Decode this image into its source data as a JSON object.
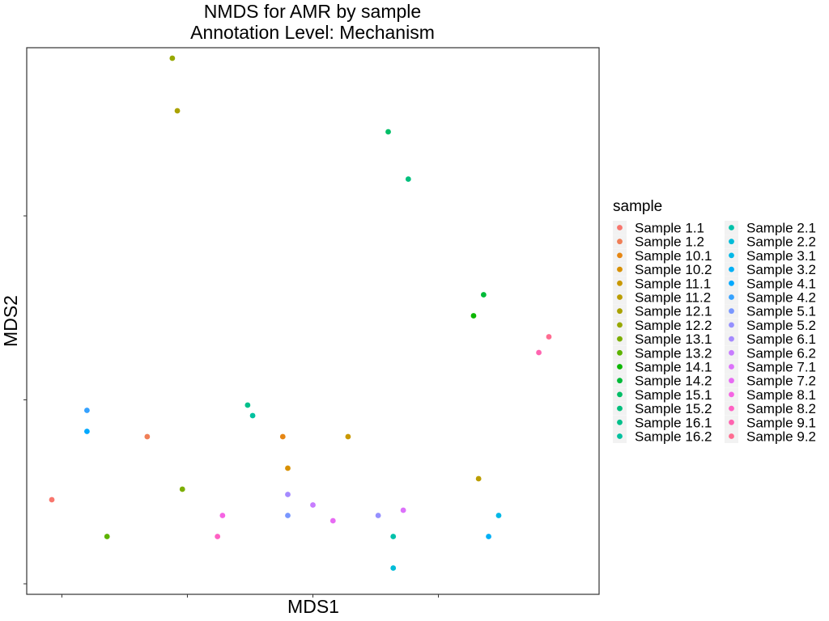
{
  "chart_data": {
    "type": "scatter",
    "title": "NMDS for AMR by sample",
    "subtitle": "Annotation Level: Mechanism",
    "xlabel": "MDS1",
    "ylabel": "MDS2",
    "xlim": [
      -0.52,
      0.62
    ],
    "ylim": [
      -0.52,
      0.52
    ],
    "grid": false,
    "axis_tick_labels": false,
    "legend": {
      "title": "sample",
      "position": "right",
      "columns": 2
    },
    "series": [
      {
        "name": "Sample 1.1",
        "color": "#F8766D",
        "x": -0.47,
        "y": -0.34
      },
      {
        "name": "Sample 1.2",
        "color": "#F07F57",
        "x": -0.28,
        "y": -0.22
      },
      {
        "name": "Sample 10.1",
        "color": "#E68613",
        "x": -0.01,
        "y": -0.22
      },
      {
        "name": "Sample 10.2",
        "color": "#D89000",
        "x": 0.0,
        "y": -0.28
      },
      {
        "name": "Sample 11.1",
        "color": "#C99800",
        "x": 0.12,
        "y": -0.22
      },
      {
        "name": "Sample 11.2",
        "color": "#BB9D00",
        "x": 0.38,
        "y": -0.3
      },
      {
        "name": "Sample 12.1",
        "color": "#AAA200",
        "x": -0.22,
        "y": 0.4
      },
      {
        "name": "Sample 12.2",
        "color": "#97A800",
        "x": -0.23,
        "y": 0.5
      },
      {
        "name": "Sample 13.1",
        "color": "#7CAE00",
        "x": -0.21,
        "y": -0.32
      },
      {
        "name": "Sample 13.2",
        "color": "#5DB300",
        "x": -0.36,
        "y": -0.41
      },
      {
        "name": "Sample 14.1",
        "color": "#0CB702",
        "x": 0.37,
        "y": 0.01
      },
      {
        "name": "Sample 14.2",
        "color": "#00BA38",
        "x": 0.39,
        "y": 0.05
      },
      {
        "name": "Sample 15.1",
        "color": "#00BE67",
        "x": 0.2,
        "y": 0.36
      },
      {
        "name": "Sample 15.2",
        "color": "#00BF7D",
        "x": 0.24,
        "y": 0.27
      },
      {
        "name": "Sample 16.1",
        "color": "#00C08B",
        "x": -0.08,
        "y": -0.16
      },
      {
        "name": "Sample 16.2",
        "color": "#00C19F",
        "x": -0.07,
        "y": -0.18
      },
      {
        "name": "Sample 2.1",
        "color": "#00C1AA",
        "x": 0.21,
        "y": -0.41
      },
      {
        "name": "Sample 2.2",
        "color": "#00BCD8",
        "x": 0.21,
        "y": -0.47
      },
      {
        "name": "Sample 3.1",
        "color": "#00B8E7",
        "x": 0.42,
        "y": -0.37
      },
      {
        "name": "Sample 3.2",
        "color": "#00B0F6",
        "x": 0.4,
        "y": -0.41
      },
      {
        "name": "Sample 4.1",
        "color": "#00A9FF",
        "x": -0.4,
        "y": -0.21
      },
      {
        "name": "Sample 4.2",
        "color": "#35A2FF",
        "x": -0.4,
        "y": -0.17
      },
      {
        "name": "Sample 5.1",
        "color": "#7997FF",
        "x": 0.0,
        "y": -0.37
      },
      {
        "name": "Sample 5.2",
        "color": "#9590FF",
        "x": 0.18,
        "y": -0.37
      },
      {
        "name": "Sample 6.1",
        "color": "#A58AFF",
        "x": 0.0,
        "y": -0.33
      },
      {
        "name": "Sample 6.2",
        "color": "#C77CFF",
        "x": 0.05,
        "y": -0.35
      },
      {
        "name": "Sample 7.1",
        "color": "#DC71FA",
        "x": 0.23,
        "y": -0.36
      },
      {
        "name": "Sample 7.2",
        "color": "#E76BF3",
        "x": 0.09,
        "y": -0.38
      },
      {
        "name": "Sample 8.1",
        "color": "#F564E3",
        "x": -0.13,
        "y": -0.37
      },
      {
        "name": "Sample 8.2",
        "color": "#FF61C3",
        "x": -0.14,
        "y": -0.41
      },
      {
        "name": "Sample 9.1",
        "color": "#FF64B0",
        "x": 0.5,
        "y": -0.06
      },
      {
        "name": "Sample 9.2",
        "color": "#FF6C91",
        "x": 0.52,
        "y": -0.03
      }
    ]
  }
}
